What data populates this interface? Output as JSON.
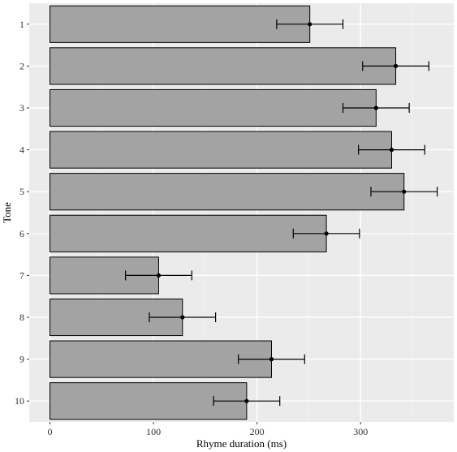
{
  "chart_data": {
    "type": "bar",
    "orientation": "horizontal",
    "xlabel": "Rhyme duration (ms)",
    "ylabel": "Tone",
    "xlim": [
      -20,
      390
    ],
    "x_ticks": [
      0,
      100,
      200,
      300
    ],
    "x_tick_labels": [
      "0",
      "100",
      "200",
      "300"
    ],
    "categories": [
      "1",
      "2",
      "3",
      "4",
      "5",
      "6",
      "7",
      "8",
      "9",
      "10"
    ],
    "values": [
      251,
      334,
      315,
      330,
      342,
      267,
      105,
      128,
      214,
      190
    ],
    "error_low": [
      219,
      302,
      283,
      298,
      310,
      235,
      73,
      96,
      182,
      158
    ],
    "error_high": [
      283,
      366,
      347,
      362,
      374,
      299,
      137,
      160,
      246,
      222
    ],
    "grid": true,
    "legend": "none",
    "colors": {
      "panel": "#ebebeb",
      "grid_major": "#ffffff",
      "grid_minor": "#f5f5f5",
      "bar_fill": "#a3a3a3",
      "bar_stroke": "#000000",
      "error": "#000000",
      "tick_text": "#333333"
    }
  }
}
